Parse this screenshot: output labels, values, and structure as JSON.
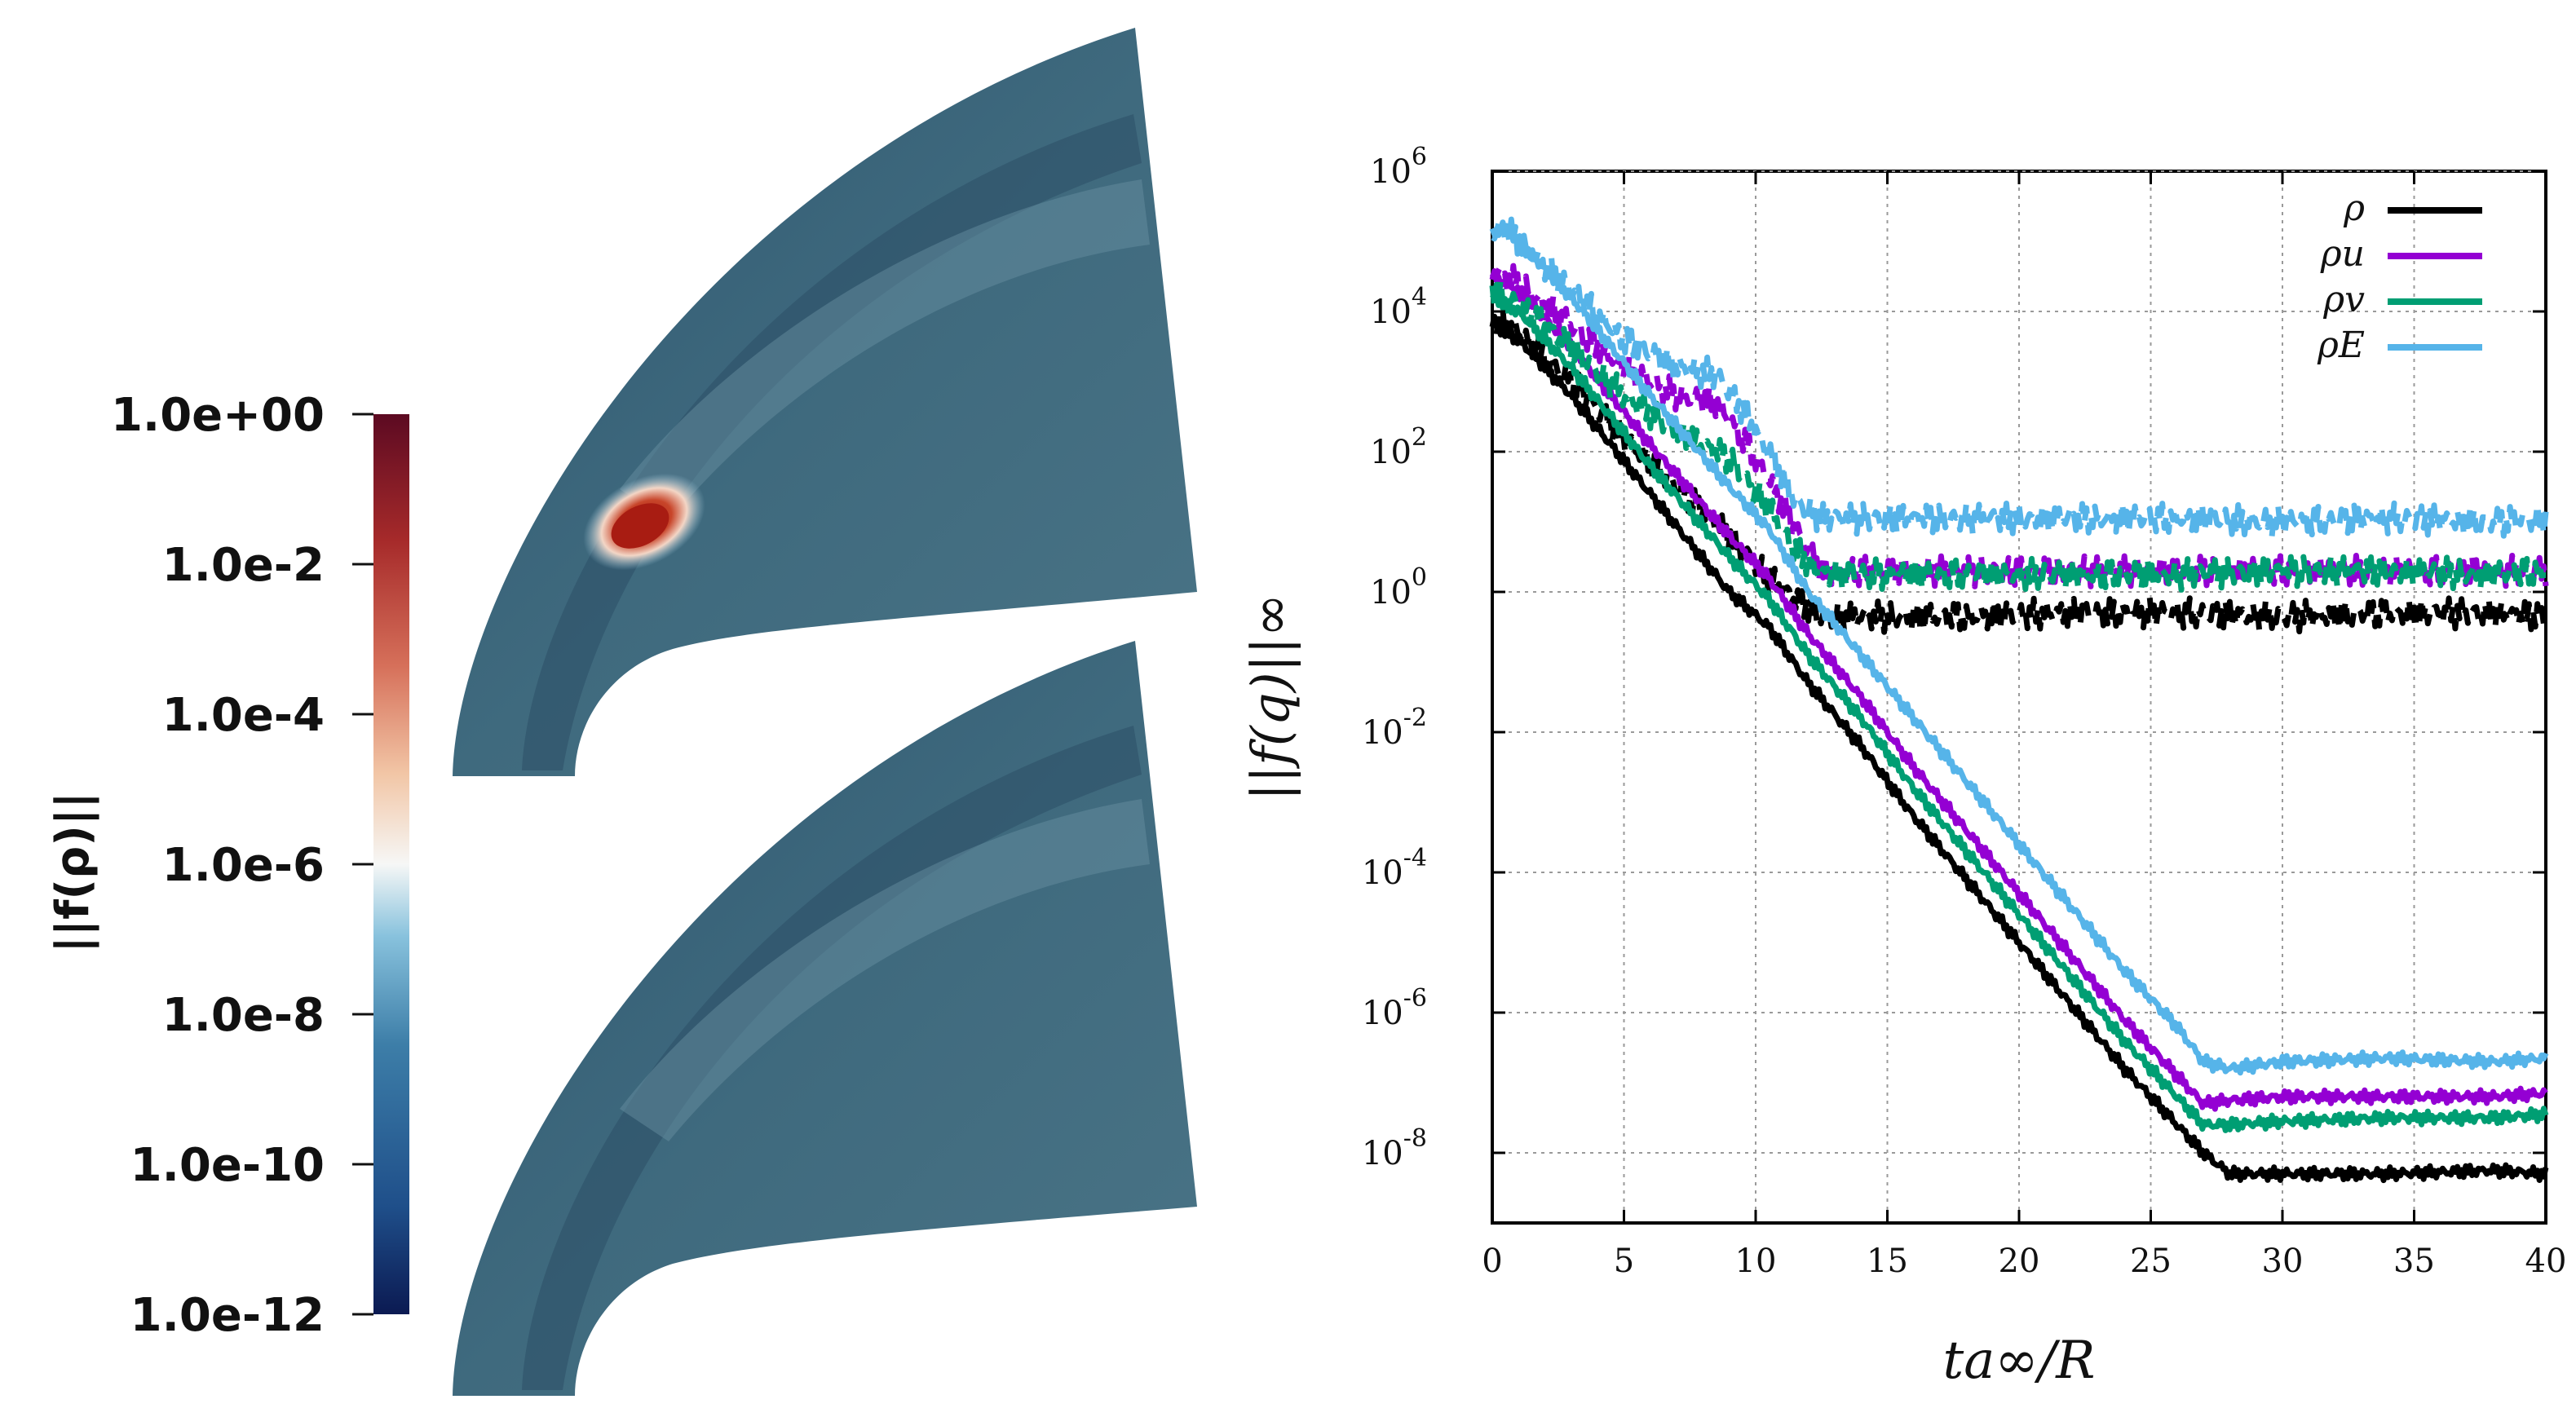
{
  "colorbar": {
    "title": "||f(ρ)||",
    "labels": [
      "1.0e+00",
      "1.0e-2",
      "1.0e-4",
      "1.0e-6",
      "1.0e-8",
      "1.0e-10",
      "1.0e-12"
    ],
    "log_range": [
      -12,
      0
    ],
    "stops": [
      "#0b1a52",
      "#1f4f8a",
      "#3d7ea8",
      "#88c2dd",
      "#f6f7f6",
      "#f2c6a6",
      "#d6705a",
      "#a62a2a",
      "#5c0a22"
    ]
  },
  "mesh_panels": {
    "base_color": "#3b6478",
    "hotspot_color": "#b42b19"
  },
  "chart_data": {
    "type": "line",
    "xlabel": "ta∞/R",
    "ylabel": "||f(q)||∞",
    "xlim": [
      0,
      40
    ],
    "ylim_log10": [
      -9,
      6
    ],
    "xticks": [
      0,
      5,
      10,
      15,
      20,
      25,
      30,
      35,
      40
    ],
    "yticks_log10": [
      -8,
      -6,
      -4,
      -2,
      0,
      2,
      4,
      6
    ],
    "ytick_base": "10",
    "grid": true,
    "legend": {
      "position": "top-right",
      "entries": [
        "ρ",
        "ρu",
        "ρv",
        "ρE"
      ]
    },
    "series": [
      {
        "name": "ρ",
        "color": "#000000",
        "style": "solid",
        "x": [
          0,
          1,
          3,
          6,
          9,
          10.5,
          12,
          14,
          16,
          18,
          20,
          22,
          24,
          26,
          27,
          28,
          30,
          34,
          38,
          40
        ],
        "log10_y": [
          3.8,
          3.6,
          2.8,
          1.4,
          0.0,
          -0.5,
          -1.3,
          -2.2,
          -3.2,
          -4.1,
          -5.0,
          -5.9,
          -6.8,
          -7.6,
          -8.0,
          -8.3,
          -8.3,
          -8.3,
          -8.25,
          -8.3
        ]
      },
      {
        "name": "ρ",
        "color": "#000000",
        "style": "dashed",
        "x": [
          0,
          1,
          3,
          5,
          7,
          9,
          10.5,
          11.5,
          12.5,
          14,
          18,
          22,
          26,
          30,
          34,
          38,
          40
        ],
        "log10_y": [
          3.9,
          3.7,
          3.0,
          2.2,
          1.5,
          0.8,
          0.2,
          -0.1,
          -0.35,
          -0.35,
          -0.35,
          -0.3,
          -0.3,
          -0.35,
          -0.3,
          -0.3,
          -0.35
        ]
      },
      {
        "name": "ρu",
        "color": "#9400d3",
        "style": "solid",
        "x": [
          0,
          1,
          3,
          6,
          9,
          10.5,
          12,
          14,
          16,
          18,
          20,
          22,
          24,
          26,
          27,
          28,
          30,
          34,
          38,
          40
        ],
        "log10_y": [
          4.5,
          4.3,
          3.5,
          2.1,
          0.8,
          0.2,
          -0.6,
          -1.5,
          -2.5,
          -3.4,
          -4.3,
          -5.2,
          -6.1,
          -6.9,
          -7.3,
          -7.25,
          -7.2,
          -7.2,
          -7.2,
          -7.15
        ]
      },
      {
        "name": "ρu",
        "color": "#9400d3",
        "style": "dashed",
        "x": [
          0,
          1,
          3,
          5,
          7,
          8.5,
          9.5,
          10.5,
          11.5,
          12.5,
          14,
          18,
          22,
          26,
          30,
          34,
          38,
          40
        ],
        "log10_y": [
          4.6,
          4.4,
          3.8,
          3.2,
          2.8,
          2.7,
          2.2,
          1.6,
          0.9,
          0.3,
          0.3,
          0.3,
          0.3,
          0.3,
          0.3,
          0.3,
          0.3,
          0.3
        ]
      },
      {
        "name": "ρv",
        "color": "#009e73",
        "style": "solid",
        "x": [
          0,
          1,
          3,
          6,
          9,
          10.5,
          12,
          14,
          16,
          18,
          20,
          22,
          24,
          26,
          27,
          28,
          30,
          34,
          38,
          40
        ],
        "log10_y": [
          4.2,
          4.0,
          3.2,
          1.8,
          0.5,
          -0.1,
          -0.9,
          -1.8,
          -2.8,
          -3.7,
          -4.6,
          -5.5,
          -6.4,
          -7.2,
          -7.6,
          -7.6,
          -7.55,
          -7.5,
          -7.5,
          -7.45
        ]
      },
      {
        "name": "ρv",
        "color": "#009e73",
        "style": "dashed",
        "x": [
          0,
          1,
          3,
          5,
          7,
          9,
          10.5,
          11.5,
          12.5,
          14,
          18,
          22,
          26,
          30,
          34,
          38,
          40
        ],
        "log10_y": [
          4.3,
          4.1,
          3.5,
          2.8,
          2.3,
          1.9,
          1.2,
          0.6,
          0.25,
          0.25,
          0.25,
          0.25,
          0.25,
          0.3,
          0.3,
          0.25,
          0.3
        ]
      },
      {
        "name": "ρE",
        "color": "#56b4e9",
        "style": "solid",
        "x": [
          0,
          0.5,
          1,
          3,
          6,
          9,
          10.5,
          12,
          14,
          16,
          18,
          20,
          22,
          24,
          26,
          27,
          28,
          30,
          34,
          38,
          40
        ],
        "log10_y": [
          5.1,
          5.2,
          5.0,
          4.2,
          2.8,
          1.5,
          0.9,
          0.0,
          -0.9,
          -1.8,
          -2.7,
          -3.6,
          -4.5,
          -5.4,
          -6.2,
          -6.7,
          -6.8,
          -6.7,
          -6.65,
          -6.7,
          -6.65
        ]
      },
      {
        "name": "ρE",
        "color": "#56b4e9",
        "style": "dashed",
        "x": [
          0,
          0.5,
          1,
          3,
          5,
          7,
          8.5,
          9.5,
          10.5,
          11.5,
          12.5,
          14,
          18,
          22,
          26,
          30,
          34,
          38,
          40
        ],
        "log10_y": [
          5.1,
          5.2,
          5.0,
          4.3,
          3.6,
          3.2,
          3.1,
          2.6,
          2.0,
          1.3,
          1.05,
          1.05,
          1.05,
          1.05,
          1.05,
          1.0,
          1.05,
          1.0,
          1.05
        ]
      }
    ]
  }
}
